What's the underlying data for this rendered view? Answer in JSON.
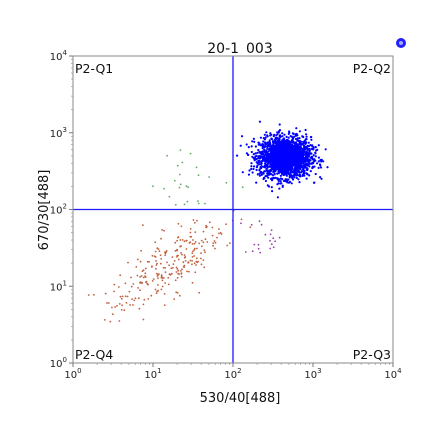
{
  "chart_data": {
    "type": "scatter",
    "title": "20-1_003",
    "xlabel": "530/40[488]",
    "ylabel": "670/30[488]",
    "xscale": "log",
    "yscale": "log",
    "xlim": [
      1,
      10000
    ],
    "ylim": [
      1,
      10000
    ],
    "x_ticks": [
      {
        "base": "10",
        "exp": "0"
      },
      {
        "base": "10",
        "exp": "1"
      },
      {
        "base": "10",
        "exp": "2"
      },
      {
        "base": "10",
        "exp": "3"
      },
      {
        "base": "10",
        "exp": "4"
      }
    ],
    "y_ticks": [
      {
        "base": "10",
        "exp": "0"
      },
      {
        "base": "10",
        "exp": "1"
      },
      {
        "base": "10",
        "exp": "2"
      },
      {
        "base": "10",
        "exp": "3"
      },
      {
        "base": "10",
        "exp": "4"
      }
    ],
    "gates": {
      "x": 100,
      "y": 100,
      "color": "#1a1aff"
    },
    "quadrant_labels": {
      "q1": "P2-Q1",
      "q2": "P2-Q2",
      "q3": "P2-Q3",
      "q4": "P2-Q4"
    },
    "grid": false,
    "populations": [
      {
        "quadrant": "Q2",
        "color": "#0000ff",
        "center": [
          450,
          480
        ],
        "spread_decades": [
          0.16,
          0.13
        ],
        "approx_events": 2200
      },
      {
        "quadrant": "Q4",
        "color": "#c0603e",
        "center": [
          15,
          18
        ],
        "spread_decades": [
          0.35,
          0.3
        ],
        "approx_events": 260
      },
      {
        "quadrant": "Q1",
        "color": "#66aa66",
        "center": [
          30,
          220
        ],
        "spread_decades": [
          0.25,
          0.2
        ],
        "approx_events": 25
      },
      {
        "quadrant": "Q3",
        "color": "#9944aa",
        "center": [
          250,
          45
        ],
        "spread_decades": [
          0.15,
          0.12
        ],
        "approx_events": 20
      }
    ]
  },
  "colors": {
    "axis": "#777777",
    "text": "#222222",
    "gate": "#1a1aff",
    "marker": "#1010ff"
  }
}
